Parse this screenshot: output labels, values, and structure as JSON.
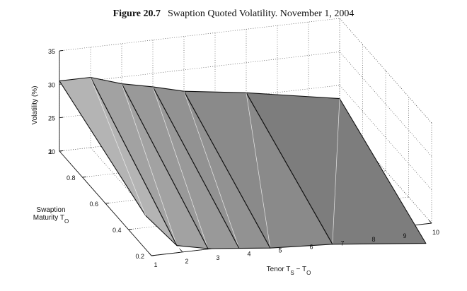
{
  "figure": {
    "number": "Figure 20.7",
    "caption": "Swaption Quoted Volatility. November 1, 2004"
  },
  "chart_data": {
    "type": "surface",
    "title": "Figure 20.7 Swaption Quoted Volatility. November 1, 2004",
    "x_label": "Tenor T_S − T_O",
    "y_label": "Swaption Maturity T_O",
    "z_label": "Volatility (%)",
    "x_ticks": [
      "1",
      "2",
      "3",
      "4",
      "5",
      "6",
      "7",
      "8",
      "9",
      "10"
    ],
    "y_ticks": [
      "0.2",
      "0.4",
      "0.6",
      "0.8",
      "1"
    ],
    "z_ticks": [
      "20",
      "25",
      "30",
      "35"
    ],
    "x_range": [
      1,
      10
    ],
    "y_range": [
      0.2,
      1
    ],
    "z_range": [
      20,
      35
    ],
    "grid": true,
    "tenor": [
      1,
      2,
      3,
      4,
      5,
      7,
      10
    ],
    "maturity": [
      0.25,
      1
    ],
    "volatility": [
      [
        25.0,
        20.0,
        19.0,
        18.5,
        18.0,
        17.5,
        16.0
      ],
      [
        30.5,
        30.5,
        29.0,
        28.0,
        26.8,
        25.5,
        23.0
      ]
    ]
  }
}
